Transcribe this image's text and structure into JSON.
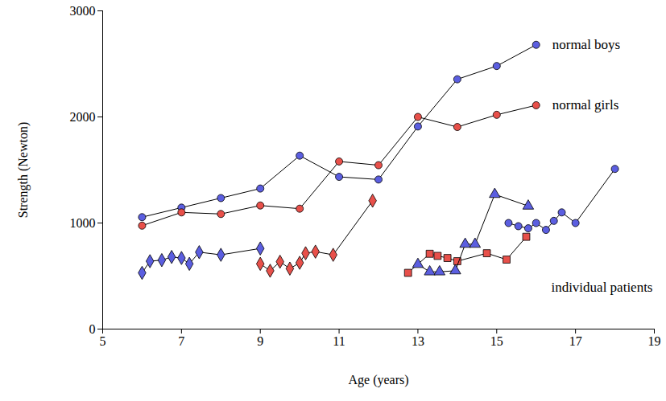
{
  "chart_data": {
    "type": "line",
    "x_label": "Age (years)",
    "y_label": "Strength (Newton)",
    "xlim": [
      5,
      19
    ],
    "xticks": [
      5,
      7,
      9,
      11,
      13,
      15,
      17,
      19
    ],
    "ylim": [
      0,
      3000
    ],
    "yticks": [
      0,
      1000,
      2000,
      3000
    ],
    "annotations": [
      "individual patients"
    ],
    "series": [
      {
        "name": "normal boys",
        "color": "#5b5ee0",
        "marker": "circle",
        "x": [
          6,
          7,
          8,
          9,
          10,
          11,
          12,
          13,
          14,
          15,
          16
        ],
        "values": [
          1055,
          1145,
          1235,
          1325,
          1635,
          1435,
          1410,
          1910,
          2355,
          2480,
          2680
        ]
      },
      {
        "name": "normal girls",
        "color": "#e8504a",
        "marker": "circle",
        "x": [
          6,
          7,
          8,
          9,
          10,
          11,
          12,
          13,
          14,
          15,
          16
        ],
        "values": [
          975,
          1100,
          1085,
          1165,
          1135,
          1580,
          1545,
          2000,
          1905,
          2020,
          2110
        ]
      },
      {
        "color": "#5b5ee0",
        "marker": "diamond",
        "x": [
          6.0,
          6.2,
          6.5,
          6.75,
          7.0,
          7.2,
          7.45,
          8.0,
          9.0
        ],
        "values": [
          530,
          640,
          650,
          680,
          670,
          615,
          725,
          700,
          760
        ]
      },
      {
        "color": "#e8504a",
        "marker": "diamond",
        "x": [
          9.0,
          9.25,
          9.5,
          9.75,
          10.0,
          10.15,
          10.4,
          10.85,
          11.85
        ],
        "values": [
          615,
          550,
          635,
          570,
          625,
          715,
          730,
          700,
          1210
        ]
      },
      {
        "color": "#e8504a",
        "marker": "square",
        "x": [
          12.75,
          13.3,
          13.5,
          13.75,
          14.0,
          14.75,
          15.25,
          15.75
        ],
        "values": [
          530,
          710,
          690,
          670,
          640,
          715,
          655,
          870
        ]
      },
      {
        "color": "#5b5ee0",
        "marker": "triangle",
        "x": [
          13.0,
          13.3,
          13.55,
          13.95,
          14.2,
          14.45,
          14.95,
          15.8
        ],
        "values": [
          610,
          540,
          540,
          550,
          800,
          800,
          1270,
          1160
        ]
      },
      {
        "color": "#5b5ee0",
        "marker": "circle",
        "x": [
          15.3,
          15.55,
          15.8,
          16.0,
          16.25,
          16.45,
          16.65,
          17.0,
          18.0
        ],
        "values": [
          1000,
          970,
          950,
          1000,
          935,
          1020,
          1100,
          1000,
          1510
        ]
      }
    ]
  }
}
